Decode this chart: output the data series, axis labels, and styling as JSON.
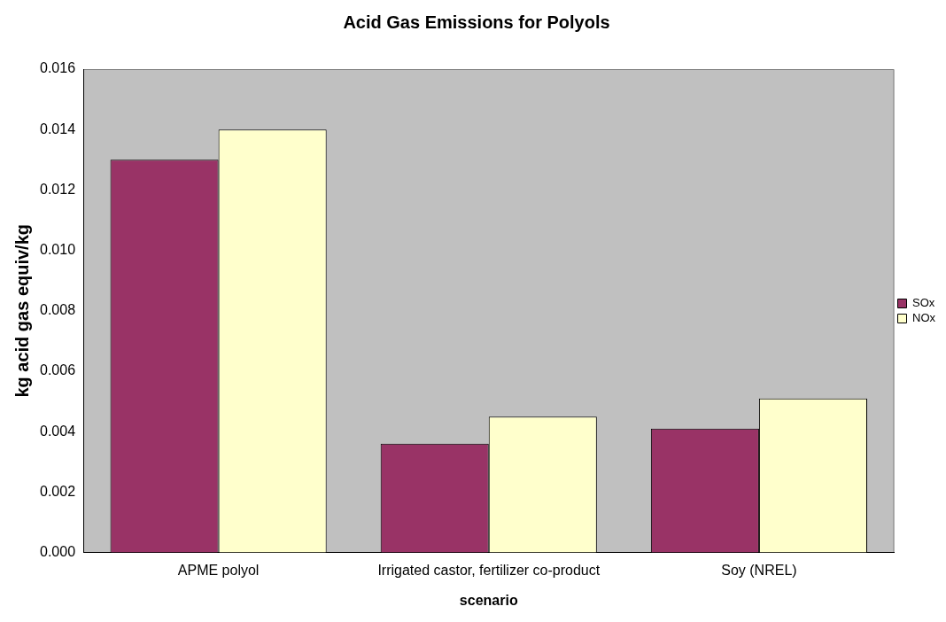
{
  "chart_data": {
    "type": "bar",
    "title": "Acid Gas Emissions for Polyols",
    "xlabel": "scenario",
    "ylabel": "kg acid gas equiv/kg",
    "categories": [
      "APME polyol",
      "Irrigated castor, fertilizer co-product",
      "Soy (NREL)"
    ],
    "series": [
      {
        "name": "SOx",
        "color": "#993366",
        "values": [
          0.013,
          0.0036,
          0.0041
        ]
      },
      {
        "name": "NOx",
        "color": "#ffffcc",
        "values": [
          0.014,
          0.0045,
          0.0051
        ]
      }
    ],
    "ylim": [
      0,
      0.016
    ],
    "yticks": [
      {
        "value": 0,
        "label": "0.000"
      },
      {
        "value": 0.002,
        "label": "0.002"
      },
      {
        "value": 0.004,
        "label": "0.004"
      },
      {
        "value": 0.006,
        "label": "0.006"
      },
      {
        "value": 0.008,
        "label": "0.008"
      },
      {
        "value": 0.01,
        "label": "0.010"
      },
      {
        "value": 0.012,
        "label": "0.012"
      },
      {
        "value": 0.014,
        "label": "0.014"
      },
      {
        "value": 0.016,
        "label": "0.016"
      }
    ],
    "legend": "right"
  }
}
